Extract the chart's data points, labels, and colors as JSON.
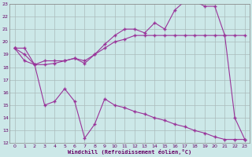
{
  "xlabel": "Windchill (Refroidissement éolien,°C)",
  "bg_color": "#cce8e8",
  "line_color": "#993399",
  "grid_color": "#aabbbb",
  "xlim": [
    -0.5,
    23.5
  ],
  "ylim": [
    12,
    23
  ],
  "yticks": [
    12,
    13,
    14,
    15,
    16,
    17,
    18,
    19,
    20,
    21,
    22,
    23
  ],
  "xticks": [
    0,
    1,
    2,
    3,
    4,
    5,
    6,
    7,
    8,
    9,
    10,
    11,
    12,
    13,
    14,
    15,
    16,
    17,
    18,
    19,
    20,
    21,
    22,
    23
  ],
  "series": [
    {
      "x": [
        0,
        1,
        2,
        3,
        4,
        5,
        6,
        7,
        8,
        9,
        10,
        11,
        12,
        13,
        14,
        15,
        16,
        17,
        18,
        19,
        20,
        21,
        22,
        23
      ],
      "y": [
        19.5,
        19.5,
        18.2,
        18.2,
        18.3,
        18.5,
        18.7,
        18.3,
        19.0,
        19.8,
        20.5,
        21.0,
        21.0,
        20.7,
        21.5,
        21.0,
        22.5,
        23.2,
        23.2,
        22.8,
        22.8,
        20.5,
        14.0,
        12.3
      ]
    },
    {
      "x": [
        0,
        1,
        2,
        3,
        4,
        5,
        6,
        7,
        8,
        9,
        10,
        11,
        12,
        13,
        14,
        15,
        16,
        17,
        18,
        19,
        20,
        21,
        22,
        23
      ],
      "y": [
        19.5,
        18.5,
        18.2,
        18.5,
        18.5,
        18.5,
        18.7,
        18.5,
        19.0,
        19.5,
        20.0,
        20.2,
        20.5,
        20.5,
        20.5,
        20.5,
        20.5,
        20.5,
        20.5,
        20.5,
        20.5,
        20.5,
        20.5,
        20.5
      ]
    },
    {
      "x": [
        0,
        1,
        2,
        3,
        4,
        5,
        6,
        7,
        8,
        9,
        10,
        11,
        12,
        13,
        14,
        15,
        16,
        17,
        18,
        19,
        20,
        21,
        22,
        23
      ],
      "y": [
        19.5,
        19.0,
        18.2,
        15.0,
        15.3,
        16.3,
        15.3,
        12.4,
        13.5,
        15.5,
        15.0,
        14.8,
        14.5,
        14.3,
        14.0,
        13.8,
        13.5,
        13.3,
        13.0,
        12.8,
        12.5,
        12.3,
        12.3,
        12.3
      ]
    }
  ]
}
